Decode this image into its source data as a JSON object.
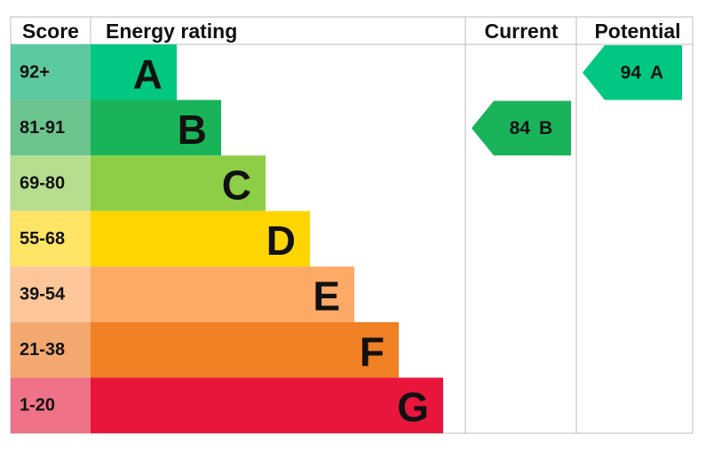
{
  "header": {
    "score": "Score",
    "rating": "Energy rating",
    "current": "Current",
    "potential": "Potential"
  },
  "bands": [
    {
      "score": "92+",
      "letter": "A",
      "color": "#00c781",
      "score_color": "#5ccaa0"
    },
    {
      "score": "81-91",
      "letter": "B",
      "color": "#19b459",
      "score_color": "#6cc58e"
    },
    {
      "score": "69-80",
      "letter": "C",
      "color": "#8dce46",
      "score_color": "#b6de8e"
    },
    {
      "score": "55-68",
      "letter": "D",
      "color": "#ffd500",
      "score_color": "#ffe466"
    },
    {
      "score": "39-54",
      "letter": "E",
      "color": "#fcaa65",
      "score_color": "#fdc59a"
    },
    {
      "score": "21-38",
      "letter": "F",
      "color": "#ef8023",
      "score_color": "#f3a870"
    },
    {
      "score": "1-20",
      "letter": "G",
      "color": "#e9153b",
      "score_color": "#ef7289"
    }
  ],
  "current": {
    "value": 84,
    "band": "B"
  },
  "potential": {
    "value": 94,
    "band": "A"
  }
}
